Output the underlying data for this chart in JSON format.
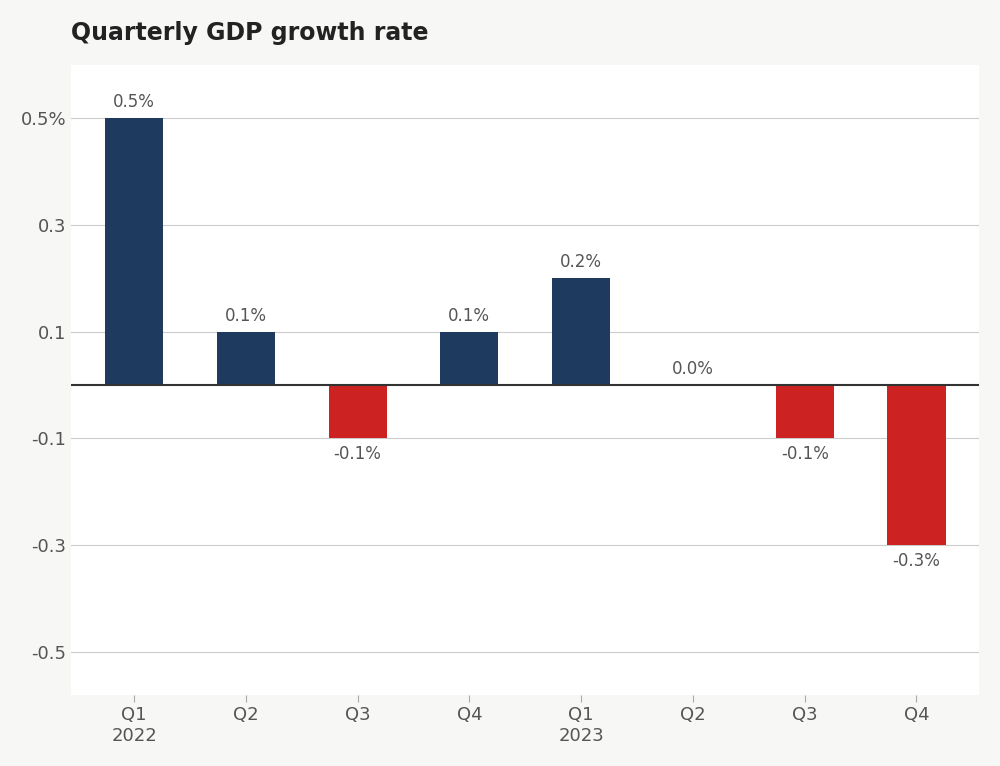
{
  "title": "Quarterly GDP growth rate",
  "categories": [
    "Q1\n2022",
    "Q2",
    "Q3",
    "Q4",
    "Q1\n2023",
    "Q2",
    "Q3",
    "Q4"
  ],
  "values": [
    0.5,
    0.1,
    -0.1,
    0.1,
    0.2,
    0.0,
    -0.1,
    -0.3
  ],
  "labels": [
    "0.5%",
    "0.1%",
    "-0.1%",
    "0.1%",
    "0.2%",
    "0.0%",
    "-0.1%",
    "-0.3%"
  ],
  "positive_color": "#1e3a5f",
  "negative_color": "#cc2222",
  "background_color": "#ffffff",
  "fig_background_color": "#f7f7f5",
  "ylim": [
    -0.58,
    0.6
  ],
  "ytick_values": [
    -0.5,
    -0.3,
    -0.1,
    0.1,
    0.3,
    0.5
  ],
  "ytick_labels": [
    "-0.5",
    "-0.3",
    "-0.1",
    "0.1",
    "0.3",
    "0.5%"
  ],
  "title_fontsize": 17,
  "label_fontsize": 12,
  "tick_fontsize": 13,
  "bar_width": 0.52,
  "grid_color": "#cccccc",
  "zero_line_color": "#333333",
  "text_color": "#555555",
  "title_color": "#222222"
}
